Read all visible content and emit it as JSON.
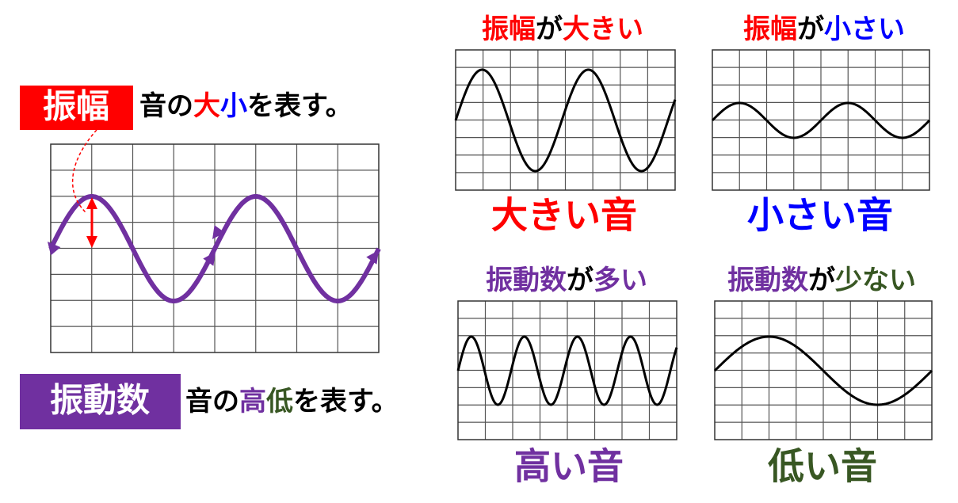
{
  "main": {
    "amplitude_label": "振幅",
    "amplitude_desc": [
      "音の",
      "大",
      "小",
      "を表す。"
    ],
    "frequency_label": "振動数",
    "frequency_desc": [
      "音の",
      "高",
      "低",
      "を表す。"
    ]
  },
  "panels": [
    {
      "heading": [
        "振幅",
        "が",
        "大きい"
      ],
      "caption": "大きい音"
    },
    {
      "heading": [
        "振幅",
        "が",
        "小さい"
      ],
      "caption": "小さい音"
    },
    {
      "heading": [
        "振動数",
        "が",
        "多い"
      ],
      "caption": "高い音"
    },
    {
      "heading": [
        "振動数",
        "が",
        "少ない"
      ],
      "caption": "低い音"
    }
  ]
}
